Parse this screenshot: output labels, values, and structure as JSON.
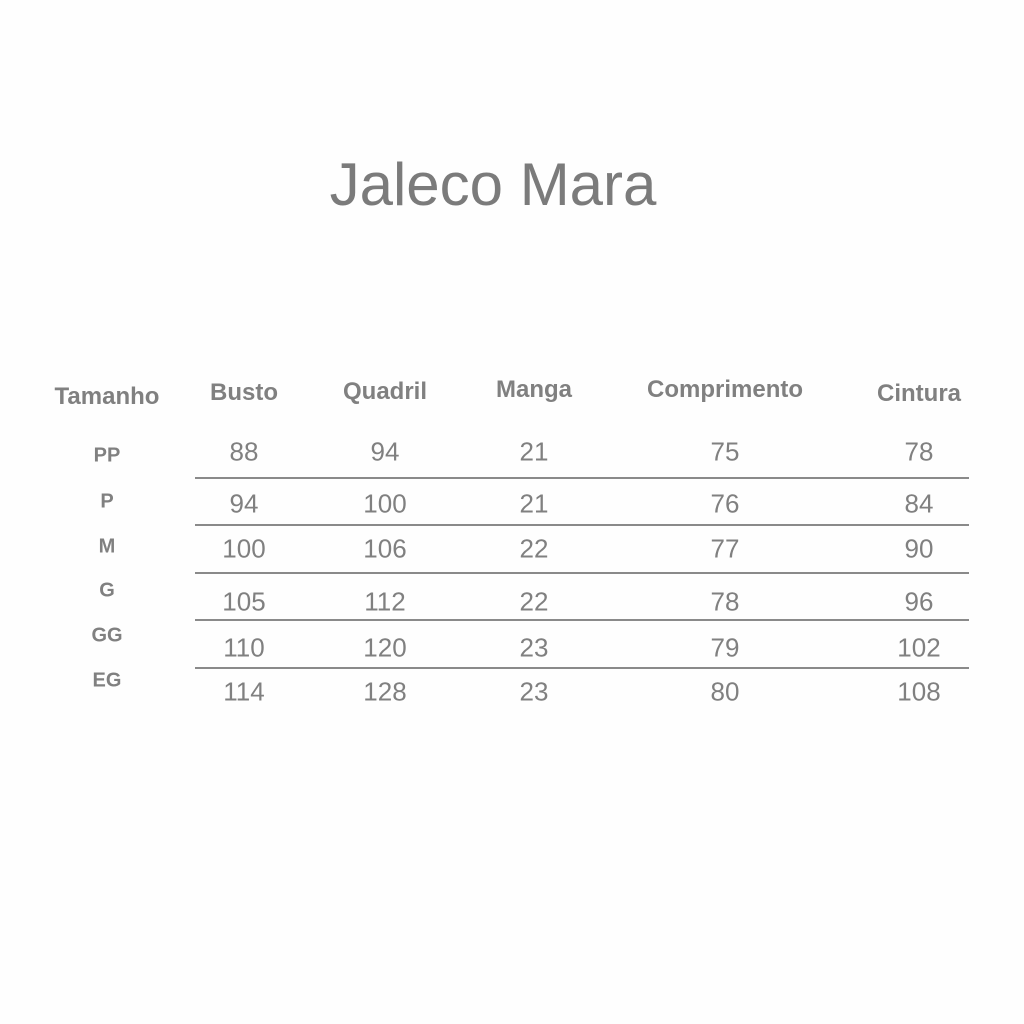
{
  "title": "Jaleco Mara",
  "table": {
    "headers": [
      "Tamanho",
      "Busto",
      "Quadril",
      "Manga",
      "Comprimento",
      "Cintura"
    ],
    "rows": [
      {
        "size": "PP",
        "values": [
          "88",
          "94",
          "21",
          "75",
          "78"
        ]
      },
      {
        "size": "P",
        "values": [
          "94",
          "100",
          "21",
          "76",
          "84"
        ]
      },
      {
        "size": "M",
        "values": [
          "100",
          "106",
          "22",
          "77",
          "90"
        ]
      },
      {
        "size": "G",
        "values": [
          "105",
          "112",
          "22",
          "78",
          "96"
        ]
      },
      {
        "size": "GG",
        "values": [
          "110",
          "120",
          "23",
          "79",
          "102"
        ]
      },
      {
        "size": "EG",
        "values": [
          "114",
          "128",
          "23",
          "80",
          "108"
        ]
      }
    ]
  }
}
